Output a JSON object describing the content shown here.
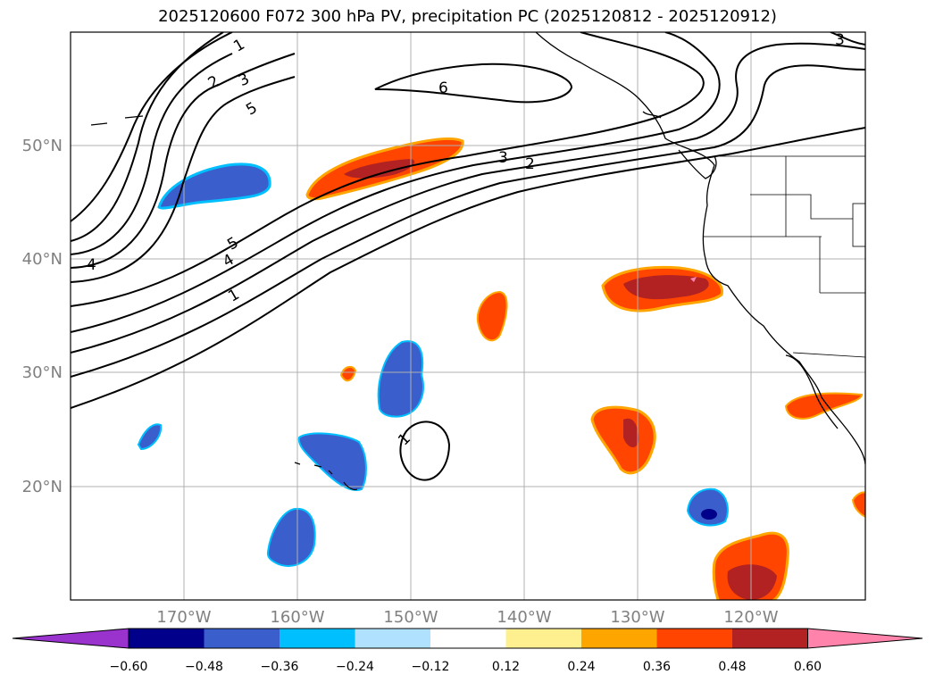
{
  "title": "2025120600 F072 300 hPa PV, precipitation PC (2025120812 - 2025120912)",
  "lon_labels": [
    "170°W",
    "160°W",
    "150°W",
    "140°W",
    "130°W",
    "120°W"
  ],
  "lat_labels": [
    "50°N",
    "40°N",
    "30°N",
    "20°N"
  ],
  "colorbar": {
    "colors": [
      "#9a32cd",
      "#00008b",
      "#3a5fcd",
      "#00bfff",
      "#b0e2ff",
      "#ffffff",
      "#fff08f",
      "#ffa500",
      "#ff4500",
      "#b22222",
      "#ff83aa"
    ],
    "ticks": [
      "−0.60",
      "−0.48",
      "−0.36",
      "−0.24",
      "−0.12",
      "0.12",
      "0.24",
      "0.36",
      "0.48",
      "0.60"
    ]
  },
  "contour_labels": [
    "1",
    "2",
    "3",
    "5",
    "6",
    "3",
    "2",
    "5",
    "4",
    "4",
    "1",
    "1",
    "3"
  ],
  "colors": {
    "negative_strong": "#3a5fcd",
    "negative_light": "#00bfff",
    "positive": "#ff4500",
    "positive_strong": "#b22222",
    "positive_light": "#ffa500",
    "pink": "#ff83aa"
  }
}
